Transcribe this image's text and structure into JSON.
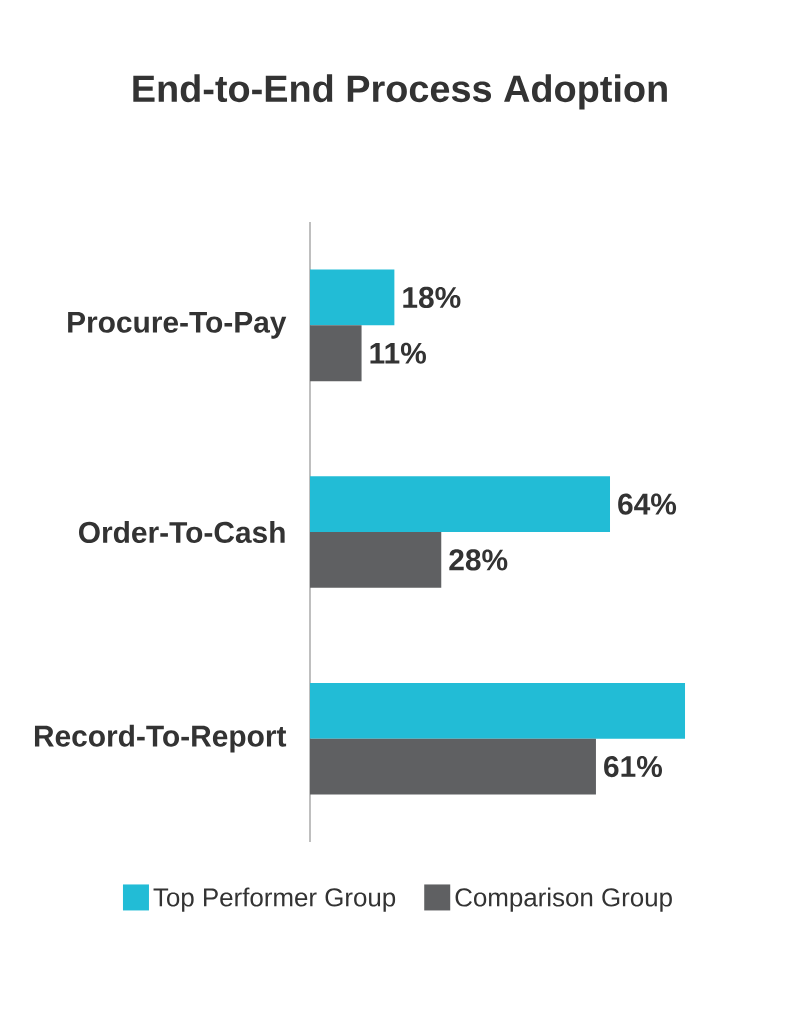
{
  "chart_data": {
    "type": "bar",
    "orientation": "horizontal",
    "title": "End-to-End Process Adoption",
    "categories": [
      "Procure-To-Pay",
      "Order-To-Cash",
      "Record-To-Report"
    ],
    "series": [
      {
        "name": "Top Performer Group",
        "color": "#22bcd6",
        "values": [
          18,
          64,
          80
        ],
        "value_labels": [
          "18%",
          "64%",
          null
        ]
      },
      {
        "name": "Comparison Group",
        "color": "#5f6062",
        "values": [
          11,
          28,
          61
        ],
        "value_labels": [
          "11%",
          "28%",
          "61%"
        ]
      }
    ],
    "legend": "bottom"
  }
}
